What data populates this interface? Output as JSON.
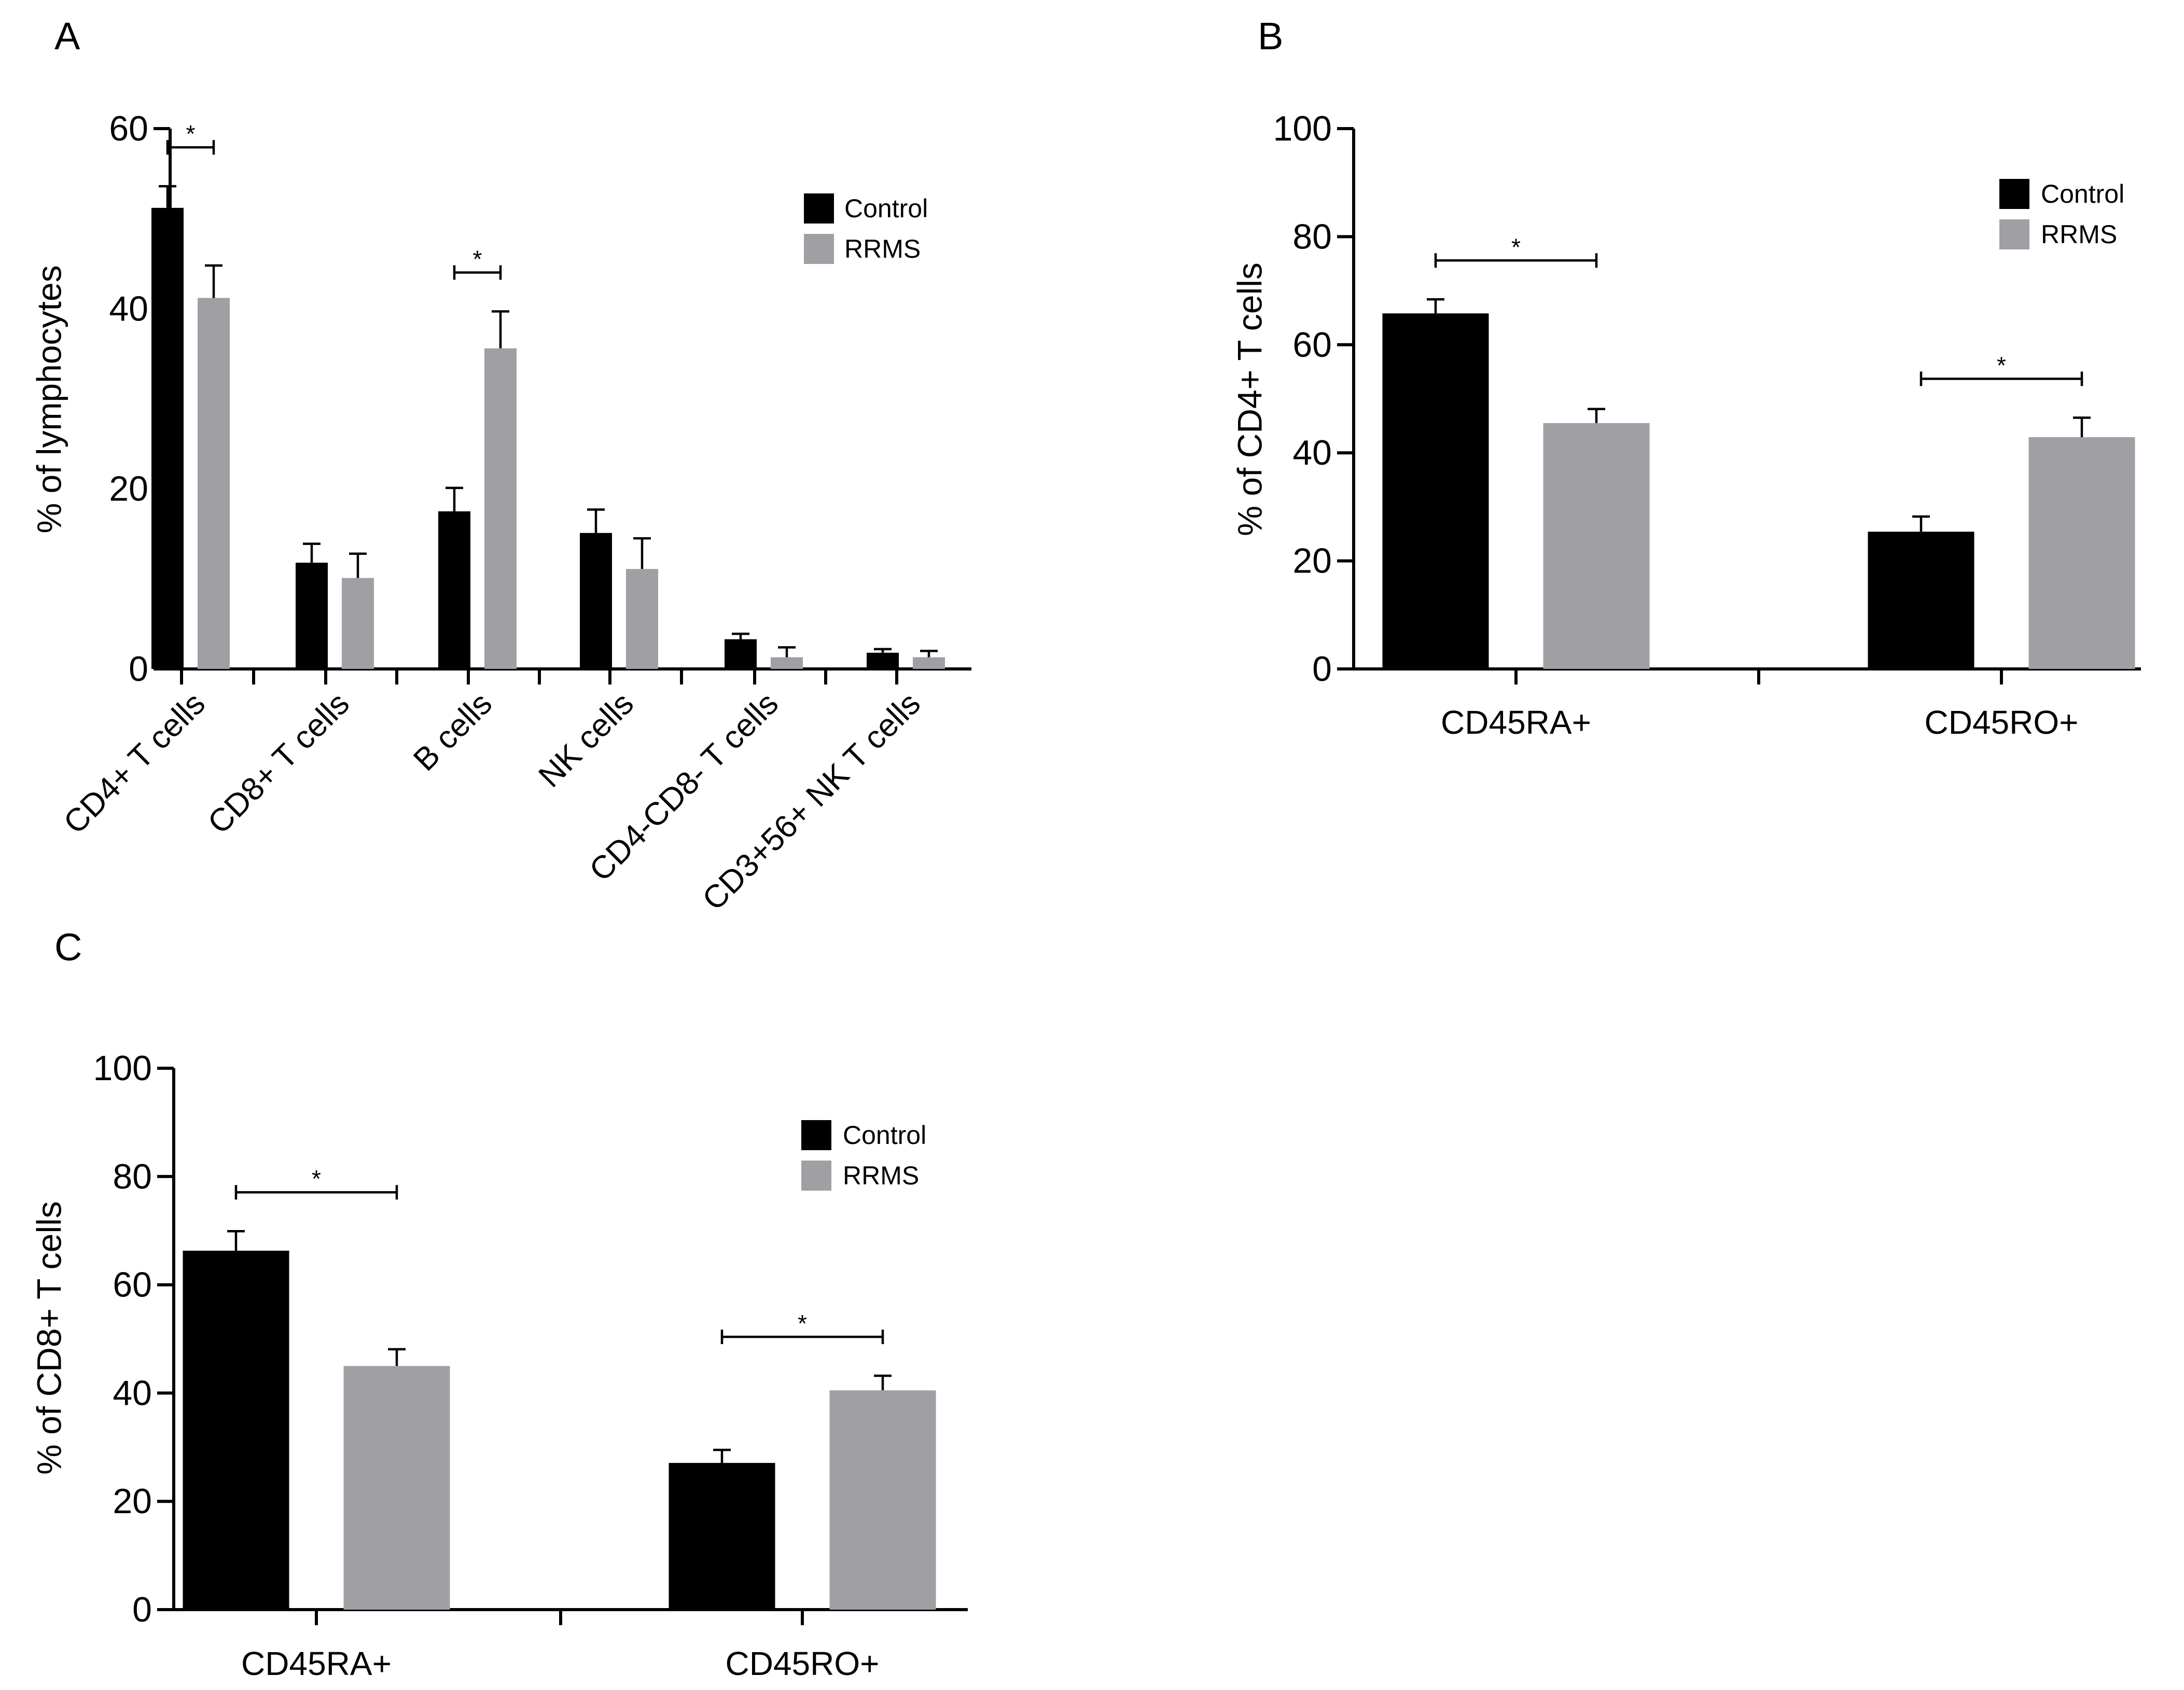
{
  "colors": {
    "control": "#000000",
    "rrms": "#a0a0a4",
    "axis": "#000000",
    "background": "#ffffff"
  },
  "chart_data": [
    {
      "panel_label": "A",
      "type": "bar",
      "title": "",
      "xlabel": "",
      "ylabel": "% of lymphocytes",
      "ylim": [
        0,
        60
      ],
      "yticks": [
        "0",
        "20",
        "40",
        "60"
      ],
      "categories": [
        "CD4+ T cells",
        "CD8+ T cells",
        "B cells",
        "NK cells",
        "CD4-CD8-  T cells",
        "CD3+56+ NK T cells"
      ],
      "series": [
        {
          "name": "Control",
          "color": "#000000",
          "values": [
            51.2,
            11.8,
            17.5,
            15.1,
            3.3,
            1.8
          ],
          "errors": [
            2.4,
            2.1,
            2.6,
            2.6,
            0.6,
            0.4
          ]
        },
        {
          "name": "RRMS",
          "color": "#a0a0a4",
          "values": [
            41.2,
            10.1,
            35.6,
            11.1,
            1.3,
            1.3
          ],
          "errors": [
            3.6,
            2.7,
            4.1,
            3.4,
            1.1,
            0.7
          ]
        }
      ],
      "significance": [
        {
          "category": "CD4+ T cells",
          "label": "*"
        },
        {
          "category": "B cells",
          "label": "*"
        }
      ],
      "legend": [
        "Control",
        "RRMS"
      ],
      "legend_position": "top-right",
      "grid": false
    },
    {
      "panel_label": "B",
      "type": "bar",
      "title": "",
      "xlabel": "",
      "ylabel": "% of CD4+ T cells",
      "ylim": [
        0,
        100
      ],
      "yticks": [
        "0",
        "20",
        "40",
        "60",
        "80",
        "100"
      ],
      "categories": [
        "CD45RA+",
        "CD45RO+"
      ],
      "series": [
        {
          "name": "Control",
          "color": "#000000",
          "values": [
            65.8,
            25.4
          ],
          "errors": [
            2.6,
            2.8
          ]
        },
        {
          "name": "RRMS",
          "color": "#a0a0a4",
          "values": [
            45.5,
            42.9
          ],
          "errors": [
            2.6,
            3.6
          ]
        }
      ],
      "significance": [
        {
          "category": "CD45RA+",
          "label": "*"
        },
        {
          "category": "CD45RO+",
          "label": "*"
        }
      ],
      "legend": [
        "Control",
        "RRMS"
      ],
      "legend_position": "top-right",
      "grid": false
    },
    {
      "panel_label": "C",
      "type": "bar",
      "title": "",
      "xlabel": "",
      "ylabel": "% of CD8+ T cells",
      "ylim": [
        0,
        100
      ],
      "yticks": [
        "0",
        "20",
        "40",
        "60",
        "80",
        "100"
      ],
      "categories": [
        "CD45RA+",
        "CD45RO+"
      ],
      "series": [
        {
          "name": "Control",
          "color": "#000000",
          "values": [
            66.3,
            27.1
          ],
          "errors": [
            3.6,
            2.4
          ]
        },
        {
          "name": "RRMS",
          "color": "#a0a0a4",
          "values": [
            45.0,
            40.5
          ],
          "errors": [
            3.1,
            2.7
          ]
        }
      ],
      "significance": [
        {
          "category": "CD45RA+",
          "label": "*"
        },
        {
          "category": "CD45RO+",
          "label": "*"
        }
      ],
      "legend": [
        "Control",
        "RRMS"
      ],
      "legend_position": "top-right",
      "grid": false
    }
  ]
}
